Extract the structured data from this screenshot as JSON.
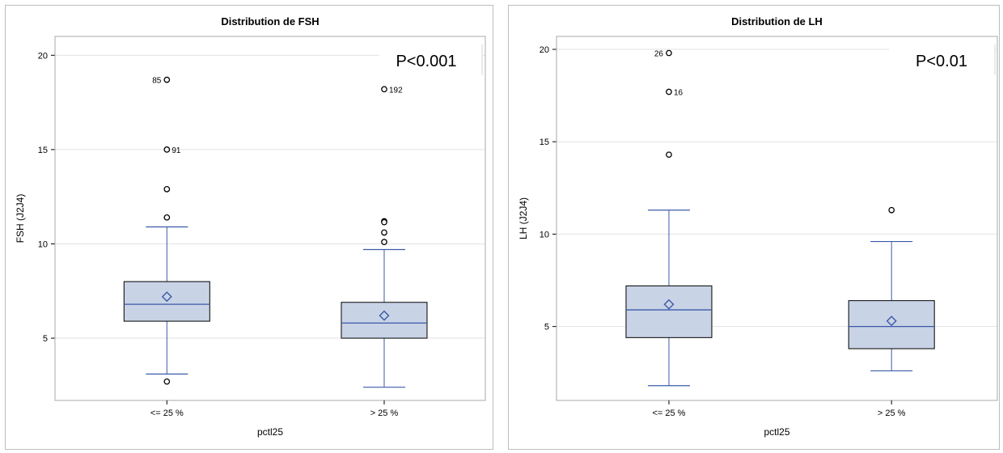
{
  "chart_data": [
    {
      "type": "box",
      "title": "Distribution de FSH",
      "xlabel": "pctl25",
      "ylabel": "FSH (J2J4)",
      "ylim": [
        1.7,
        21
      ],
      "yticks": [
        5,
        10,
        15,
        20
      ],
      "annotation": "P<0.001",
      "grid": true,
      "categories": [
        "<= 25 %",
        "> 25 %"
      ],
      "boxes": [
        {
          "category": "<= 25 %",
          "whisker_low": 3.1,
          "q1": 5.9,
          "median": 6.8,
          "q3": 8.0,
          "whisker_high": 10.9,
          "mean": 7.2,
          "outliers": [
            {
              "value": 18.7,
              "label": "85"
            },
            {
              "value": 15.0,
              "label": "91"
            },
            {
              "value": 12.9,
              "label": ""
            },
            {
              "value": 11.4,
              "label": ""
            },
            {
              "value": 2.7,
              "label": ""
            }
          ]
        },
        {
          "category": "> 25 %",
          "whisker_low": 2.4,
          "q1": 5.0,
          "median": 5.8,
          "q3": 6.9,
          "whisker_high": 9.7,
          "mean": 6.2,
          "outliers": [
            {
              "value": 18.2,
              "label": "192"
            },
            {
              "value": 11.2,
              "label": ""
            },
            {
              "value": 11.15,
              "label": ""
            },
            {
              "value": 10.6,
              "label": ""
            },
            {
              "value": 10.1,
              "label": ""
            }
          ]
        }
      ]
    },
    {
      "type": "box",
      "title": "Distribution de LH",
      "xlabel": "pctl25",
      "ylabel": "LH (J2J4)",
      "ylim": [
        1.0,
        20.7
      ],
      "yticks": [
        5,
        10,
        15,
        20
      ],
      "annotation": "P<0.01",
      "grid": true,
      "categories": [
        "<= 25 %",
        "> 25 %"
      ],
      "boxes": [
        {
          "category": "<= 25 %",
          "whisker_low": 1.8,
          "q1": 4.4,
          "median": 5.9,
          "q3": 7.2,
          "whisker_high": 11.3,
          "mean": 6.2,
          "outliers": [
            {
              "value": 19.8,
              "label": "26"
            },
            {
              "value": 17.7,
              "label": "16"
            },
            {
              "value": 14.3,
              "label": ""
            }
          ]
        },
        {
          "category": "> 25 %",
          "whisker_low": 2.6,
          "q1": 3.8,
          "median": 5.0,
          "q3": 6.4,
          "whisker_high": 9.6,
          "mean": 5.3,
          "outliers": [
            {
              "value": 11.3,
              "label": ""
            }
          ]
        }
      ]
    }
  ],
  "colors": {
    "box_fill": "#c9d3e6",
    "box_border": "#000000",
    "line": "#3a5ba8",
    "grid": "#e2e2e2",
    "frame": "#a8a8a8"
  }
}
